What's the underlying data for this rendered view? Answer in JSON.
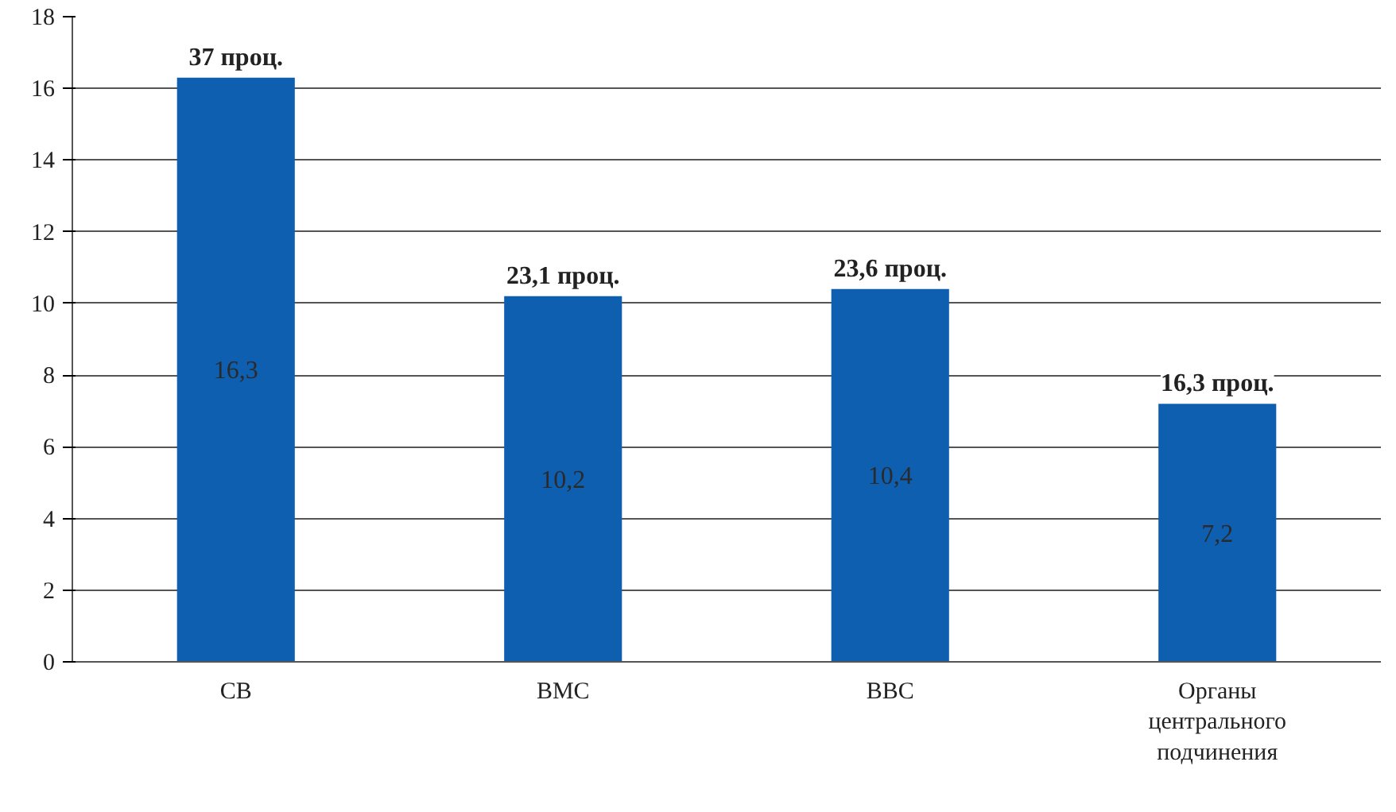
{
  "chart_data": {
    "type": "bar",
    "categories": [
      "СВ",
      "ВМС",
      "ВВС",
      "Органы\nцентрального\nподчинения"
    ],
    "values": [
      16.3,
      10.2,
      10.4,
      7.2
    ],
    "value_labels": [
      "16,3",
      "10,2",
      "10,4",
      "7,2"
    ],
    "color": "#0f5fb0",
    "ylim": [
      0,
      18
    ],
    "yticks": [
      0,
      2,
      4,
      6,
      8,
      10,
      12,
      14,
      16,
      18
    ],
    "grid": "y",
    "annotations": [
      {
        "text": "37 проц.",
        "x": "СВ",
        "y": 16.3
      },
      {
        "text": "23,1 проц.",
        "x": "ВМС",
        "y": 10.2
      },
      {
        "text": "23,6 проц.",
        "x": "ВВС",
        "y": 10.4
      },
      {
        "text": "16,3 проц.",
        "x": "Органы\nцентрального\nподчинения",
        "y": 7.2
      }
    ]
  }
}
